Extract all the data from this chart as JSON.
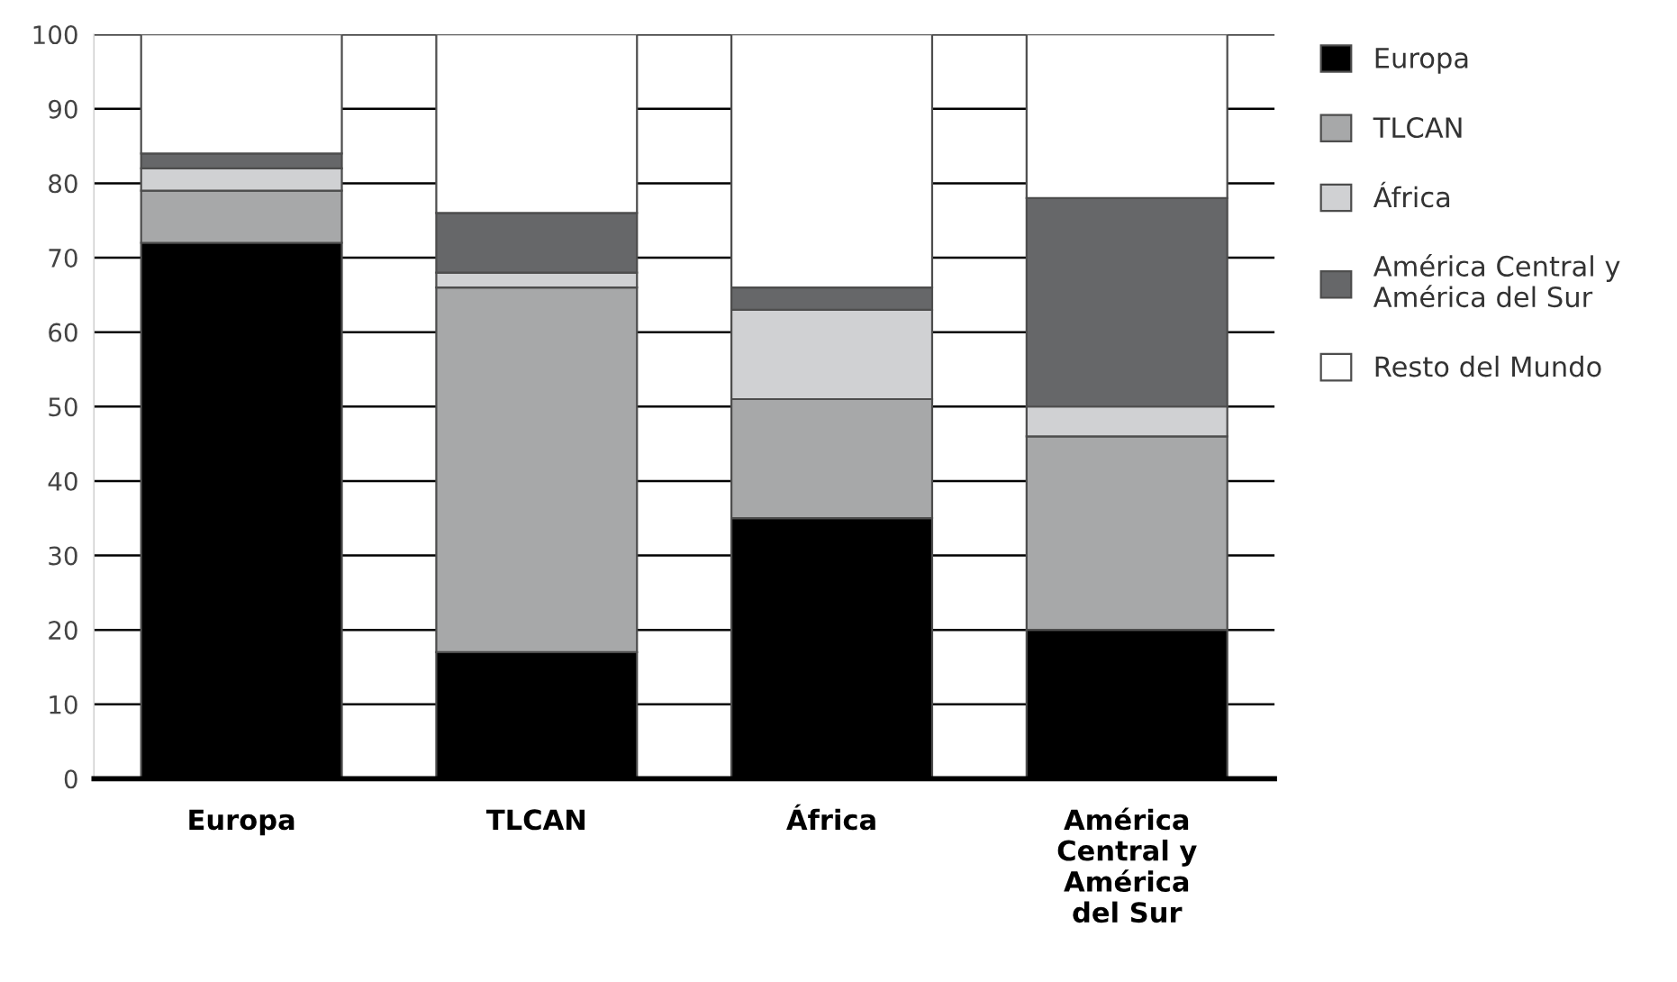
{
  "chart_data": {
    "type": "bar",
    "stacked": true,
    "categories": [
      "Europa",
      "TLCAN",
      "África",
      "América Central y América del Sur"
    ],
    "series": [
      {
        "name": "Europa",
        "color": "#000000",
        "values": [
          72,
          17,
          35,
          20
        ]
      },
      {
        "name": "TLCAN",
        "color": "#a7a8a9",
        "values": [
          7,
          49,
          16,
          26
        ]
      },
      {
        "name": "África",
        "color": "#d0d1d3",
        "values": [
          3,
          2,
          12,
          4
        ]
      },
      {
        "name": "América Central y América del Sur",
        "color": "#666769",
        "values": [
          2,
          8,
          3,
          28
        ]
      },
      {
        "name": "Resto del Mundo",
        "color": "#ffffff",
        "values": [
          16,
          24,
          34,
          22
        ]
      }
    ],
    "ylim": [
      0,
      100
    ],
    "yticks": [
      0,
      10,
      20,
      30,
      40,
      50,
      60,
      70,
      80,
      90,
      100
    ],
    "grid": "y",
    "legend": "top right"
  }
}
